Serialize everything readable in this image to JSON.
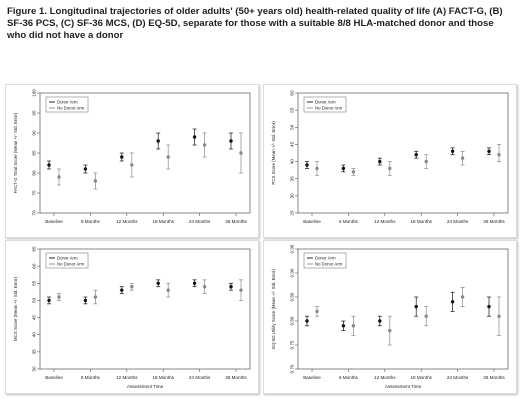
{
  "caption": "Figure 1. Longitudinal trajectories of older adults' (50+ years old) health-related quality of life (A) FACT-G, (B) SF-36 PCS, (C) SF-36 MCS, (D) EQ-5D, separate for those with a suitable 8/8 HLA-matched donor and those who did not have a donor",
  "colors": {
    "donor": "#111111",
    "no_donor": "#888888"
  },
  "chart_data": [
    {
      "type": "scatter",
      "panel": "A",
      "categories": [
        "Baseline",
        "6 Months",
        "12 Months",
        "18 Months",
        "24 Months",
        "36 Months"
      ],
      "xlabel": "",
      "ylabel": "FACT-G Total Score (Mean +/- Std. Error)",
      "ylim": [
        70,
        100
      ],
      "yticks": [
        70,
        75,
        80,
        85,
        90,
        95,
        100
      ],
      "legend": "top-left",
      "series": [
        {
          "name": "Donor Arm",
          "values": [
            82,
            81,
            84,
            88,
            89,
            88
          ],
          "lower": [
            81,
            80,
            83,
            86,
            87,
            86
          ],
          "upper": [
            83,
            82,
            85,
            90,
            91,
            90
          ]
        },
        {
          "name": "No Donor Arm",
          "values": [
            79,
            78,
            82,
            84,
            87,
            85
          ],
          "lower": [
            77,
            76,
            79,
            81,
            84,
            80
          ],
          "upper": [
            81,
            80,
            85,
            87,
            90,
            90
          ]
        }
      ]
    },
    {
      "type": "scatter",
      "panel": "B",
      "categories": [
        "Baseline",
        "6 Months",
        "12 Months",
        "18 Months",
        "24 Months",
        "36 Months"
      ],
      "xlabel": "",
      "ylabel": "PCS Score (Mean +/- Std. Error)",
      "ylim": [
        25,
        60
      ],
      "yticks": [
        25,
        30,
        35,
        40,
        45,
        50,
        55,
        60
      ],
      "legend": "top-left",
      "series": [
        {
          "name": "Donor Arm",
          "values": [
            39,
            38,
            40,
            42,
            43,
            43
          ],
          "lower": [
            38,
            37,
            39,
            41,
            42,
            42
          ],
          "upper": [
            40,
            39,
            41,
            43,
            44,
            44
          ]
        },
        {
          "name": "No Donor Arm",
          "values": [
            38,
            37,
            38,
            40,
            41,
            42
          ],
          "lower": [
            36,
            36,
            36,
            38,
            39,
            40
          ],
          "upper": [
            40,
            38,
            40,
            42,
            43,
            45
          ]
        }
      ]
    },
    {
      "type": "scatter",
      "panel": "C",
      "categories": [
        "Baseline",
        "6 Months",
        "12 Months",
        "18 Months",
        "24 Months",
        "36 Months"
      ],
      "xlabel": "Assessment Time",
      "ylabel": "MCS Score (Mean +/- Std. Error)",
      "ylim": [
        30,
        65
      ],
      "yticks": [
        30,
        35,
        40,
        45,
        50,
        55,
        60,
        65
      ],
      "legend": "top-left",
      "series": [
        {
          "name": "Donor Arm",
          "values": [
            50,
            50,
            53,
            55,
            55,
            54
          ],
          "lower": [
            49,
            49,
            52,
            54,
            54,
            53
          ],
          "upper": [
            51,
            51,
            54,
            56,
            56,
            55
          ]
        },
        {
          "name": "No Donor Arm",
          "values": [
            51,
            51,
            54,
            53,
            54,
            53
          ],
          "lower": [
            50,
            49,
            53,
            51,
            52,
            50
          ],
          "upper": [
            52,
            53,
            55,
            55,
            56,
            56
          ]
        }
      ]
    },
    {
      "type": "scatter",
      "panel": "D",
      "categories": [
        "Baseline",
        "6 Months",
        "12 Months",
        "18 Months",
        "24 Months",
        "36 Months"
      ],
      "xlabel": "Assessment Time",
      "ylabel": "EQ-5D Utility Score (Mean +/- Std. Error)",
      "ylim": [
        0.7,
        0.95
      ],
      "yticks": [
        0.7,
        0.75,
        0.8,
        0.85,
        0.9,
        0.95
      ],
      "legend": "top-left",
      "series": [
        {
          "name": "Donor Arm",
          "values": [
            0.8,
            0.79,
            0.8,
            0.83,
            0.84,
            0.83
          ],
          "lower": [
            0.79,
            0.78,
            0.79,
            0.81,
            0.82,
            0.81
          ],
          "upper": [
            0.81,
            0.8,
            0.81,
            0.85,
            0.86,
            0.85
          ]
        },
        {
          "name": "No Donor Arm",
          "values": [
            0.82,
            0.79,
            0.78,
            0.81,
            0.85,
            0.81
          ],
          "lower": [
            0.81,
            0.77,
            0.75,
            0.79,
            0.83,
            0.77
          ],
          "upper": [
            0.83,
            0.81,
            0.81,
            0.83,
            0.87,
            0.85
          ]
        }
      ]
    }
  ]
}
